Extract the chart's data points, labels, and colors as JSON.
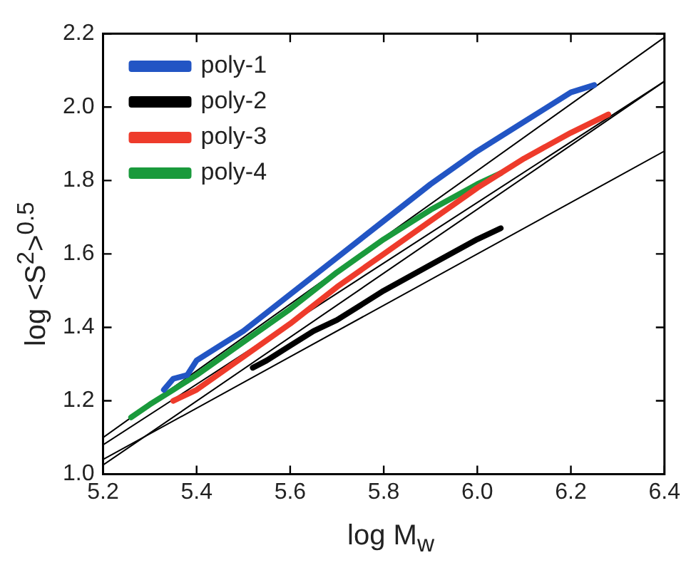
{
  "chart_data": {
    "type": "line",
    "xlabel": "log M$_{w}$",
    "ylabel": "log <S$^{2}$>$^{0.5}$",
    "xlim": [
      5.2,
      6.4
    ],
    "xticks": [
      5.2,
      5.4,
      5.6,
      5.8,
      {
        "value": 6,
        "label": "6.0"
      },
      6.2,
      6.4
    ],
    "ylim": [
      1,
      2.2
    ],
    "yticks": [
      {
        "value": 1,
        "label": "1.0"
      },
      1.2,
      1.4,
      1.6,
      1.8,
      {
        "value": 2,
        "label": "2.0"
      },
      2.2
    ],
    "legend": "top left",
    "marker": "none",
    "line_style": "solid",
    "series": [
      {
        "name": "poly-1",
        "color": "#2255c4",
        "x": [
          5.33,
          5.35,
          5.38,
          5.4,
          5.45,
          5.5,
          5.6,
          5.7,
          5.8,
          5.9,
          6.0,
          6.1,
          6.2,
          6.25
        ],
        "values": [
          1.23,
          1.26,
          1.27,
          1.31,
          1.35,
          1.39,
          1.49,
          1.59,
          1.69,
          1.79,
          1.88,
          1.96,
          2.04,
          2.06
        ]
      },
      {
        "name": "poly-2",
        "color": "#000000",
        "x": [
          5.52,
          5.55,
          5.6,
          5.65,
          5.7,
          5.75,
          5.8,
          5.9,
          6.0,
          6.05
        ],
        "values": [
          1.29,
          1.31,
          1.35,
          1.39,
          1.42,
          1.46,
          1.5,
          1.57,
          1.64,
          1.67
        ]
      },
      {
        "name": "poly-3",
        "color": "#ee3b2b",
        "x": [
          5.35,
          5.4,
          5.5,
          5.6,
          5.7,
          5.8,
          5.9,
          6.0,
          6.1,
          6.2,
          6.28
        ],
        "values": [
          1.2,
          1.23,
          1.32,
          1.41,
          1.51,
          1.6,
          1.69,
          1.78,
          1.86,
          1.93,
          1.98
        ]
      },
      {
        "name": "poly-4",
        "color": "#1a9a3c",
        "x": [
          5.26,
          5.3,
          5.35,
          5.4,
          5.5,
          5.6,
          5.7,
          5.8,
          5.9,
          6.0,
          6.05
        ],
        "values": [
          1.155,
          1.19,
          1.23,
          1.27,
          1.36,
          1.45,
          1.55,
          1.64,
          1.72,
          1.79,
          1.82
        ]
      },
      {
        "type": "line",
        "color": "#000000",
        "x": [
          5.2,
          6.4
        ],
        "values": [
          1.1,
          2.19
        ]
      },
      {
        "type": "line",
        "color": "#000000",
        "x": [
          5.2,
          6.4
        ],
        "values": [
          1.08,
          2.07
        ]
      },
      {
        "type": "line",
        "color": "#000000",
        "x": [
          5.2,
          6.4
        ],
        "values": [
          1.04,
          1.88
        ]
      },
      {
        "type": "line",
        "color": "#000000",
        "x": [
          5.2,
          6.4
        ],
        "values": [
          1.025,
          2.07
        ]
      }
    ]
  }
}
